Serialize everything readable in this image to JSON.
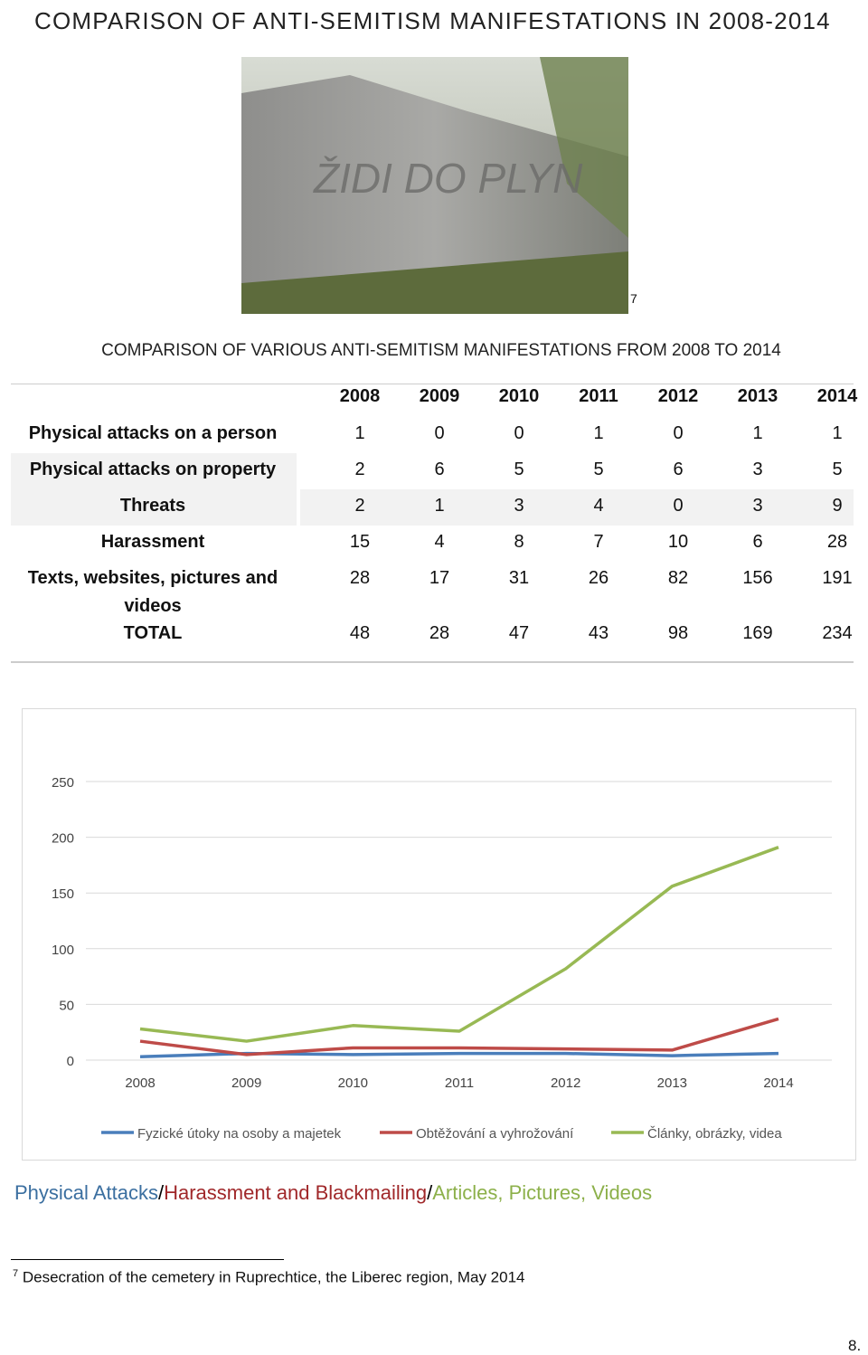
{
  "page_title": "COMPARISON OF ANTI-SEMITISM MANIFESTATIONS IN 2008-2014",
  "photo_footnote_mark": "7",
  "table": {
    "title": "COMPARISON OF VARIOUS ANTI-SEMITISM MANIFESTATIONS FROM 2008 TO 2014",
    "years": [
      "2008",
      "2009",
      "2010",
      "2011",
      "2012",
      "2013",
      "2014"
    ],
    "rows": [
      {
        "label": "Physical attacks on a person",
        "values": [
          1,
          0,
          0,
          1,
          0,
          1,
          1
        ]
      },
      {
        "label": "Physical attacks on property",
        "values": [
          2,
          6,
          5,
          5,
          6,
          3,
          5
        ]
      },
      {
        "label": "Threats",
        "values": [
          2,
          1,
          3,
          4,
          0,
          3,
          9
        ]
      },
      {
        "label": "Harassment",
        "values": [
          15,
          4,
          8,
          7,
          10,
          6,
          28
        ]
      },
      {
        "label": "Texts, websites, pictures and videos",
        "values": [
          28,
          17,
          31,
          26,
          82,
          156,
          191
        ]
      },
      {
        "label": "TOTAL",
        "values": [
          48,
          28,
          47,
          43,
          98,
          169,
          234
        ]
      }
    ]
  },
  "chart_data": {
    "type": "line",
    "categories": [
      "2008",
      "2009",
      "2010",
      "2011",
      "2012",
      "2013",
      "2014"
    ],
    "series": [
      {
        "name": "Fyzické útoky na osoby a majetek",
        "color": "#4a7ebb",
        "values": [
          3,
          6,
          5,
          6,
          6,
          4,
          6
        ]
      },
      {
        "name": "Obtěžování a vyhrožování",
        "color": "#be4b48",
        "values": [
          17,
          5,
          11,
          11,
          10,
          9,
          37
        ]
      },
      {
        "name": "Články, obrázky, videa",
        "color": "#98b954",
        "values": [
          28,
          17,
          31,
          26,
          82,
          156,
          191
        ]
      }
    ],
    "ylim": [
      0,
      250
    ],
    "yticks": [
      0,
      50,
      100,
      150,
      200,
      250
    ],
    "grid": true
  },
  "caption": [
    {
      "text": "Physical Attacks",
      "color": "#3b6fa0"
    },
    {
      "text": "/",
      "color": "#000000"
    },
    {
      "text": "Harassment and Blackmailing",
      "color": "#a0282a"
    },
    {
      "text": "/",
      "color": "#000000"
    },
    {
      "text": "Articles, Pictures, Videos",
      "color": "#8cb04a"
    }
  ],
  "footnote": {
    "mark": "7",
    "text": "Desecration of the cemetery in Ruprechtice, the Liberec region, May 2014"
  },
  "page_number": "8."
}
